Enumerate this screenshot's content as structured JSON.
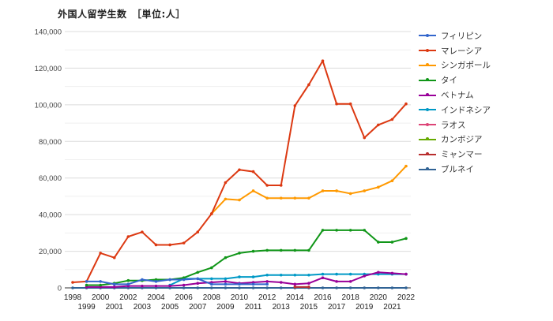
{
  "title": "外国人留学生数　［単位:人］",
  "chart_data": {
    "type": "line",
    "title": "外国人留学生数　［単位:人］",
    "xlabel": "",
    "ylabel": "",
    "ylim": [
      0,
      140000
    ],
    "yticks": [
      "0",
      "20,000",
      "40,000",
      "60,000",
      "80,000",
      "100,000",
      "120,000",
      "140,000"
    ],
    "grid": true,
    "legend_position": "right",
    "x": [
      "1998",
      "1999",
      "2000",
      "2001",
      "2002",
      "2003",
      "2004",
      "2005",
      "2006",
      "2007",
      "2008",
      "2009",
      "2010",
      "2011",
      "2012",
      "2013",
      "2014",
      "2015",
      "2016",
      "2017",
      "2018",
      "2019",
      "2020",
      "2021",
      "2022"
    ],
    "series": [
      {
        "name": "フィリピン",
        "color": "#3366cc",
        "values": [
          null,
          3500,
          3500,
          2000,
          2000,
          4500,
          3500,
          4500,
          4500,
          5000,
          2000,
          2000,
          2000,
          2000,
          2000,
          null,
          null,
          null,
          null,
          null,
          null,
          null,
          null,
          null,
          null
        ]
      },
      {
        "name": "マレーシア",
        "color": "#dc3912",
        "values": [
          3000,
          3500,
          19000,
          16500,
          28000,
          30500,
          23500,
          23500,
          24500,
          30500,
          40500,
          57500,
          64500,
          63500,
          56000,
          56000,
          99500,
          111000,
          124000,
          100500,
          100500,
          82000,
          89000,
          92000,
          100500
        ]
      },
      {
        "name": "シンガポール",
        "color": "#ff9900",
        "values": [
          null,
          null,
          null,
          null,
          null,
          null,
          null,
          null,
          null,
          null,
          40500,
          48500,
          48000,
          53000,
          49000,
          49000,
          49000,
          49000,
          53000,
          53000,
          51500,
          53000,
          55000,
          58500,
          66500
        ]
      },
      {
        "name": "タイ",
        "color": "#109618",
        "values": [
          null,
          1500,
          1500,
          2500,
          4000,
          4000,
          4500,
          4500,
          5500,
          8500,
          11000,
          16500,
          19000,
          20000,
          20500,
          20500,
          20500,
          20500,
          31500,
          31500,
          31500,
          31500,
          25000,
          25000,
          27000
        ]
      },
      {
        "name": "ベトナム",
        "color": "#990099",
        "values": [
          null,
          500,
          500,
          500,
          1000,
          1000,
          1000,
          1000,
          1500,
          2500,
          3000,
          3500,
          2500,
          3000,
          3500,
          3000,
          2000,
          2500,
          5500,
          3500,
          3500,
          6500,
          8500,
          8000,
          7500
        ]
      },
      {
        "name": "インドネシア",
        "color": "#0099c6",
        "values": [
          null,
          null,
          null,
          null,
          null,
          null,
          null,
          1500,
          5000,
          5000,
          5000,
          5000,
          6000,
          6000,
          7000,
          7000,
          7000,
          7000,
          7500,
          7500,
          7500,
          7500,
          7500,
          7500,
          7500
        ]
      },
      {
        "name": "ラオス",
        "color": "#dd4477",
        "values": [
          null,
          null,
          null,
          null,
          null,
          null,
          null,
          null,
          null,
          null,
          null,
          null,
          null,
          null,
          null,
          null,
          null,
          null,
          null,
          null,
          null,
          null,
          null,
          null,
          null
        ]
      },
      {
        "name": "カンボジア",
        "color": "#66aa00",
        "values": [
          null,
          null,
          null,
          null,
          null,
          null,
          null,
          null,
          null,
          null,
          null,
          null,
          null,
          null,
          null,
          null,
          null,
          null,
          null,
          null,
          null,
          null,
          null,
          null,
          null
        ]
      },
      {
        "name": "ミャンマー",
        "color": "#b82e2e",
        "values": [
          null,
          null,
          null,
          null,
          null,
          null,
          null,
          null,
          null,
          null,
          null,
          null,
          null,
          null,
          null,
          null,
          500,
          500,
          null,
          null,
          null,
          null,
          null,
          null,
          null
        ]
      },
      {
        "name": "ブルネイ",
        "color": "#316395",
        "values": [
          0,
          0,
          0,
          0,
          0,
          0,
          0,
          0,
          0,
          0,
          0,
          0,
          0,
          0,
          0,
          0,
          0,
          0,
          0,
          0,
          0,
          0,
          0,
          0,
          0
        ]
      }
    ]
  },
  "legend": [
    {
      "label": "フィリピン",
      "color": "#3366cc"
    },
    {
      "label": "マレーシア",
      "color": "#dc3912"
    },
    {
      "label": "シンガポール",
      "color": "#ff9900"
    },
    {
      "label": "タイ",
      "color": "#109618"
    },
    {
      "label": "ベトナム",
      "color": "#990099"
    },
    {
      "label": "インドネシア",
      "color": "#0099c6"
    },
    {
      "label": "ラオス",
      "color": "#dd4477"
    },
    {
      "label": "カンボジア",
      "color": "#66aa00"
    },
    {
      "label": "ミャンマー",
      "color": "#b82e2e"
    },
    {
      "label": "ブルネイ",
      "color": "#316395"
    }
  ]
}
